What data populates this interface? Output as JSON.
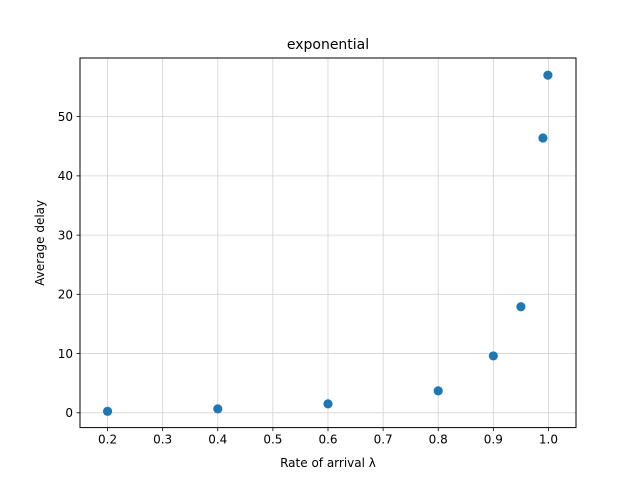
{
  "chart_data": {
    "type": "scatter",
    "title": "exponential",
    "xlabel": "Rate of arrival λ",
    "ylabel": "Average delay",
    "xlim": [
      0.15,
      1.05
    ],
    "ylim": [
      -2.5,
      59.9
    ],
    "xticks": [
      0.2,
      0.3,
      0.4,
      0.5,
      0.6,
      0.7,
      0.8,
      0.9,
      1.0
    ],
    "xtick_labels": [
      "0.2",
      "0.3",
      "0.4",
      "0.5",
      "0.6",
      "0.7",
      "0.8",
      "0.9",
      "1.0"
    ],
    "yticks": [
      0,
      10,
      20,
      30,
      40,
      50
    ],
    "ytick_labels": [
      "0",
      "10",
      "20",
      "30",
      "40",
      "50"
    ],
    "grid": true,
    "marker_color": "#1f77b4",
    "grid_color": "#d3d3d3",
    "series": [
      {
        "name": "exponential",
        "x": [
          0.2,
          0.4,
          0.6,
          0.8,
          0.9,
          0.95,
          0.99,
          0.999
        ],
        "y": [
          0.25,
          0.67,
          1.5,
          3.7,
          9.6,
          17.9,
          46.4,
          57.0
        ]
      }
    ]
  }
}
